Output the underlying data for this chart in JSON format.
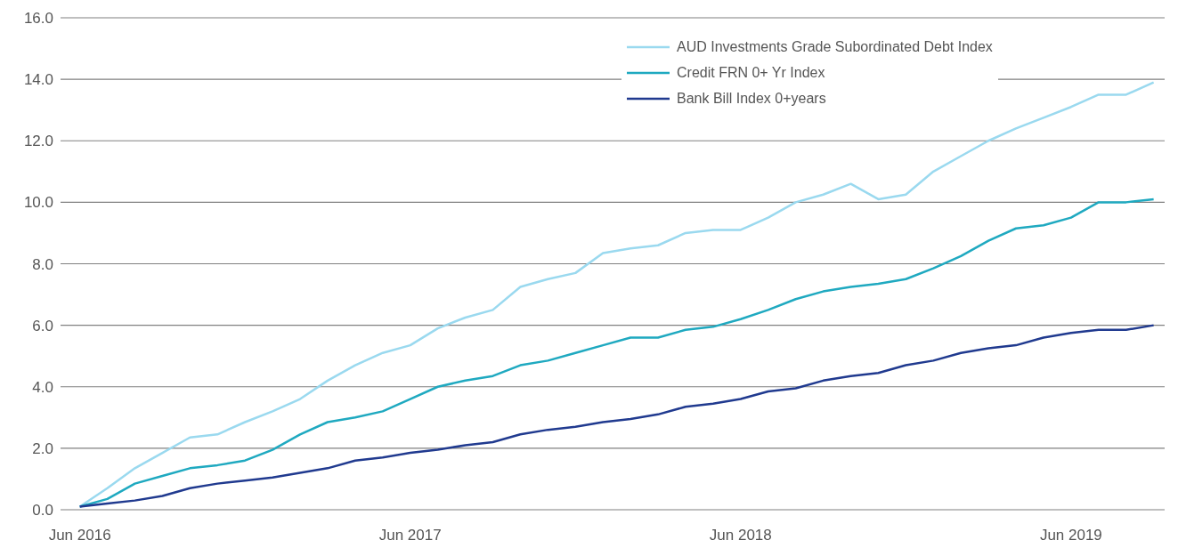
{
  "chart_data": {
    "type": "line",
    "categories": [
      "Jun 2016",
      null,
      null,
      null,
      null,
      null,
      null,
      null,
      null,
      null,
      null,
      null,
      "Jun 2017",
      null,
      null,
      null,
      null,
      null,
      null,
      null,
      null,
      null,
      null,
      null,
      "Jun 2018",
      null,
      null,
      null,
      null,
      null,
      null,
      null,
      null,
      null,
      null,
      null,
      "Jun 2019",
      null,
      null,
      null
    ],
    "series": [
      {
        "name": "AUD Investments Grade Subordinated Debt Index",
        "color": "#9ad9ef",
        "values": [
          0.1,
          0.7,
          1.35,
          1.85,
          2.35,
          2.45,
          2.85,
          3.2,
          3.6,
          4.2,
          4.7,
          5.1,
          5.35,
          5.9,
          6.25,
          6.5,
          7.25,
          7.5,
          7.7,
          8.35,
          8.5,
          8.6,
          9.0,
          9.1,
          9.1,
          9.5,
          10.0,
          10.25,
          10.6,
          10.1,
          10.25,
          11.0,
          11.5,
          12.0,
          12.4,
          12.75,
          13.1,
          13.5,
          13.5,
          13.9
        ]
      },
      {
        "name": "Credit FRN 0+ Yr Index",
        "color": "#1fa9c0",
        "values": [
          0.1,
          0.35,
          0.85,
          1.1,
          1.35,
          1.45,
          1.6,
          1.95,
          2.45,
          2.85,
          3.0,
          3.2,
          3.6,
          4.0,
          4.2,
          4.35,
          4.7,
          4.85,
          5.1,
          5.35,
          5.6,
          5.6,
          5.85,
          5.95,
          6.2,
          6.5,
          6.85,
          7.1,
          7.25,
          7.35,
          7.5,
          7.85,
          8.25,
          8.75,
          9.15,
          9.25,
          9.5,
          10.0,
          10.0,
          10.1
        ]
      },
      {
        "name": "Bank Bill Index 0+years",
        "color": "#203a8f",
        "values": [
          0.1,
          0.2,
          0.3,
          0.45,
          0.7,
          0.85,
          0.95,
          1.05,
          1.2,
          1.35,
          1.6,
          1.7,
          1.85,
          1.95,
          2.1,
          2.2,
          2.45,
          2.6,
          2.7,
          2.85,
          2.95,
          3.1,
          3.35,
          3.45,
          3.6,
          3.85,
          3.95,
          4.2,
          4.35,
          4.45,
          4.7,
          4.85,
          5.1,
          5.25,
          5.35,
          5.6,
          5.75,
          5.85,
          5.85,
          6.0
        ]
      }
    ],
    "ylim": [
      0,
      16
    ],
    "yticks": [
      {
        "value": 0,
        "label": "0.0"
      },
      {
        "value": 2,
        "label": "2.0"
      },
      {
        "value": 4,
        "label": "4.0"
      },
      {
        "value": 6,
        "label": "6.0"
      },
      {
        "value": 8,
        "label": "8.0"
      },
      {
        "value": 10,
        "label": "10.0"
      },
      {
        "value": 12,
        "label": "12.0"
      },
      {
        "value": 14,
        "label": "14.0"
      },
      {
        "value": 16,
        "label": "16.0"
      }
    ],
    "grid": "y",
    "legend": "top right",
    "marker": "none",
    "line_style": "solid"
  }
}
